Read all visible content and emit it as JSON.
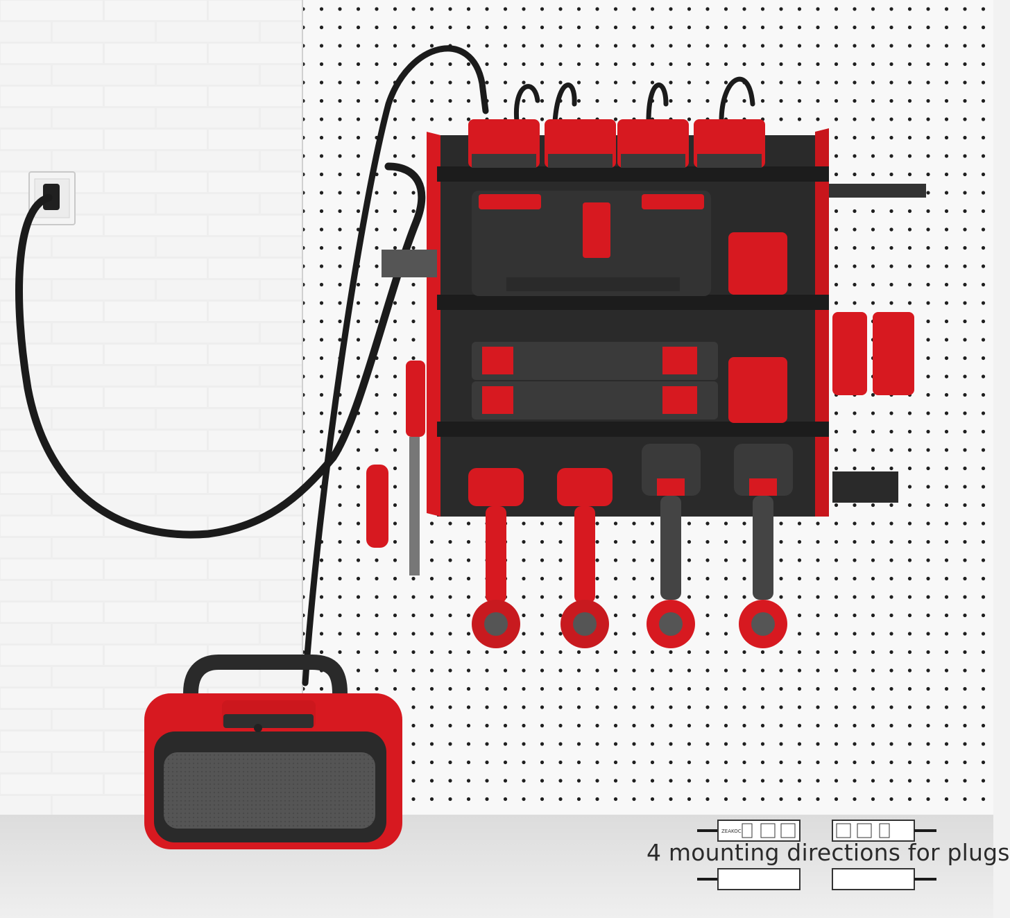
{
  "caption": "4 mounting directions for plugs",
  "power_strip_brand": "ZEAKOC",
  "colors": {
    "accent_red": "#d71920",
    "dark_gray": "#2b2b2b",
    "pegboard_white": "#f7f7f7",
    "brick_white": "#ededed"
  },
  "icons": [
    "wall-outlet-icon",
    "power-strip-icon",
    "plug-icon"
  ]
}
